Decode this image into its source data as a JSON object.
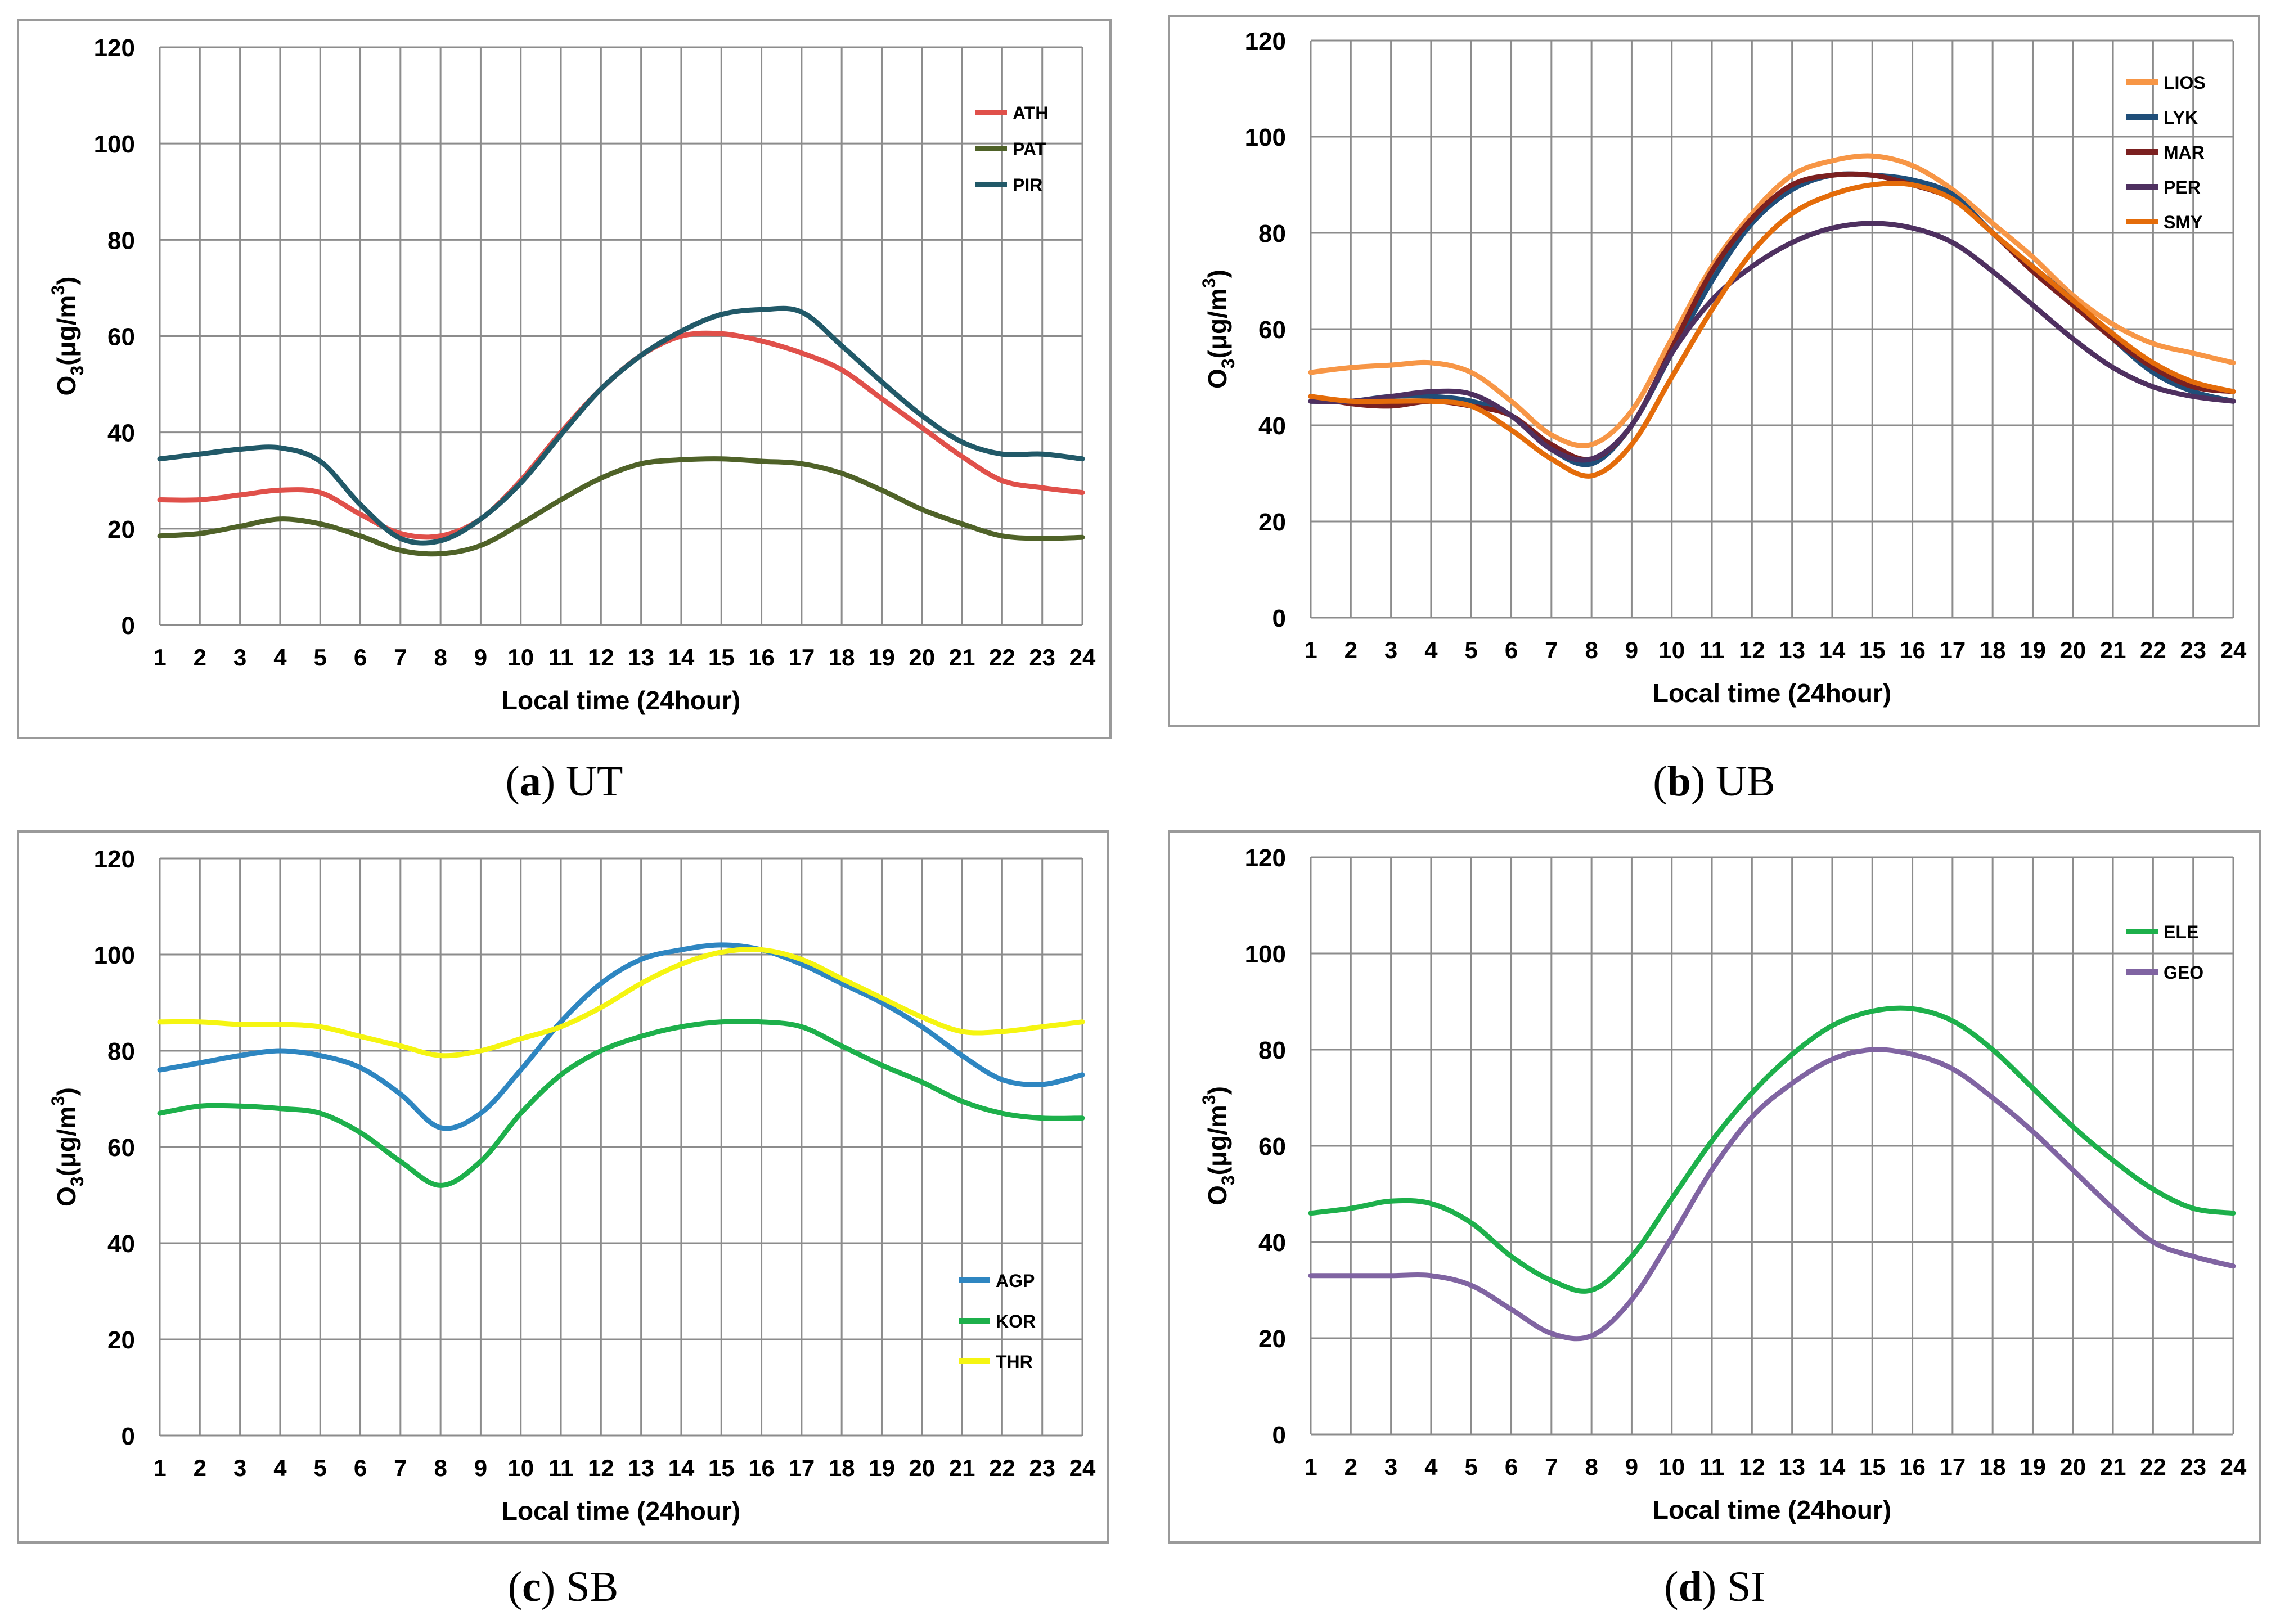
{
  "figure": {
    "panels": [
      {
        "id": "a",
        "caption_letter": "a",
        "caption_text": "UT"
      },
      {
        "id": "b",
        "caption_letter": "b",
        "caption_text": "UB"
      },
      {
        "id": "c",
        "caption_letter": "c",
        "caption_text": "SB"
      },
      {
        "id": "d",
        "caption_letter": "d",
        "caption_text": "SI"
      }
    ]
  },
  "chart_data": [
    {
      "type": "line",
      "title": "",
      "xlabel": "Local time (24hour)",
      "ylabel": "O3(μg/m3)",
      "ylim": [
        0,
        120
      ],
      "yticks": [
        0,
        20,
        40,
        60,
        80,
        100,
        120
      ],
      "x": [
        1,
        2,
        3,
        4,
        5,
        6,
        7,
        8,
        9,
        10,
        11,
        12,
        13,
        14,
        15,
        16,
        17,
        18,
        19,
        20,
        21,
        22,
        23,
        24
      ],
      "legend_position": "top-right",
      "series": [
        {
          "name": "ATH",
          "color": "#e0504a",
          "values": [
            26,
            26,
            27,
            28,
            27.5,
            23,
            19,
            18.5,
            22,
            30,
            40,
            49,
            56,
            60,
            60.5,
            59,
            56.5,
            53,
            47,
            41,
            35,
            30,
            28.5,
            27.5
          ]
        },
        {
          "name": "PAT",
          "color": "#4f6228",
          "values": [
            18.5,
            19,
            20.5,
            22,
            21,
            18.5,
            15.5,
            14.8,
            16.5,
            21,
            26,
            30.5,
            33.5,
            34.3,
            34.5,
            34,
            33.5,
            31.5,
            28,
            24,
            21,
            18.5,
            18,
            18.2
          ]
        },
        {
          "name": "PIR",
          "color": "#215968",
          "values": [
            34.5,
            35.5,
            36.5,
            36.8,
            34,
            25,
            18,
            17.5,
            22,
            29.5,
            39.5,
            49,
            56,
            61,
            64.5,
            65.5,
            65,
            58,
            50.5,
            43.5,
            38,
            35.5,
            35.5,
            34.5
          ]
        }
      ]
    },
    {
      "type": "line",
      "title": "",
      "xlabel": "Local time (24hour)",
      "ylabel": "O3(μg/m3)",
      "ylim": [
        0,
        120
      ],
      "yticks": [
        0,
        20,
        40,
        60,
        80,
        100,
        120
      ],
      "x": [
        1,
        2,
        3,
        4,
        5,
        6,
        7,
        8,
        9,
        10,
        11,
        12,
        13,
        14,
        15,
        16,
        17,
        18,
        19,
        20,
        21,
        22,
        23,
        24
      ],
      "legend_position": "top-right",
      "series": [
        {
          "name": "LIOS",
          "color": "#f79646",
          "values": [
            51,
            52,
            52.5,
            53,
            51,
            45,
            38,
            36,
            43,
            58,
            73,
            84,
            92,
            95,
            96,
            94,
            89,
            82,
            75,
            67,
            61,
            57,
            55,
            53
          ]
        },
        {
          "name": "LYK",
          "color": "#1f4e79",
          "values": [
            45,
            45,
            46,
            46,
            45,
            42,
            35,
            32,
            40,
            55,
            70,
            82,
            89,
            92,
            92,
            91,
            88,
            80,
            73,
            66,
            58,
            51,
            47,
            45
          ]
        },
        {
          "name": "MAR",
          "color": "#7b2020",
          "values": [
            46,
            44.5,
            44,
            45,
            44,
            42,
            36,
            33,
            40,
            56,
            72,
            83,
            90,
            92,
            92,
            90,
            87,
            80,
            72,
            65,
            58,
            52,
            48,
            47
          ]
        },
        {
          "name": "PER",
          "color": "#4e3060",
          "values": [
            45,
            45,
            46,
            47,
            46.5,
            42,
            35,
            33,
            40,
            55,
            66,
            73,
            78,
            81,
            82,
            81,
            78,
            72,
            65,
            58,
            52,
            48,
            46,
            45
          ]
        },
        {
          "name": "SMY",
          "color": "#e46c0a",
          "values": [
            46,
            45,
            45,
            45,
            44,
            39,
            33,
            29.5,
            36,
            50,
            64,
            76,
            84,
            88,
            90,
            90,
            87,
            80,
            73,
            66,
            59,
            53,
            49,
            47
          ]
        }
      ]
    },
    {
      "type": "line",
      "title": "",
      "xlabel": "Local time (24hour)",
      "ylabel": "O3(μg/m3)",
      "ylim": [
        0,
        120
      ],
      "yticks": [
        0,
        20,
        40,
        60,
        80,
        100,
        120
      ],
      "x": [
        1,
        2,
        3,
        4,
        5,
        6,
        7,
        8,
        9,
        10,
        11,
        12,
        13,
        14,
        15,
        16,
        17,
        18,
        19,
        20,
        21,
        22,
        23,
        24
      ],
      "legend_position": "bottom-right",
      "series": [
        {
          "name": "AGP",
          "color": "#2e86c1",
          "values": [
            76,
            77.5,
            79,
            80,
            79,
            76.5,
            71,
            64,
            67,
            76,
            86,
            94,
            99,
            101,
            102,
            101,
            98,
            94,
            90,
            85,
            79,
            74,
            73,
            75
          ]
        },
        {
          "name": "KOR",
          "color": "#1db04b",
          "values": [
            67,
            68.5,
            68.5,
            68,
            67,
            63,
            57,
            52,
            57,
            67,
            75,
            80,
            83,
            85,
            86,
            86,
            85,
            81,
            77,
            73.5,
            69.5,
            67,
            66,
            66
          ]
        },
        {
          "name": "THR",
          "color": "#f5f511",
          "values": [
            86,
            86,
            85.5,
            85.5,
            85,
            83,
            81,
            79,
            80,
            82.5,
            85,
            89,
            94,
            98,
            100.5,
            101,
            99,
            95,
            91,
            87,
            84,
            84,
            85,
            86
          ]
        }
      ]
    },
    {
      "type": "line",
      "title": "",
      "xlabel": "Local time (24hour)",
      "ylabel": "O3(μg/m3)",
      "ylim": [
        0,
        120
      ],
      "yticks": [
        0,
        20,
        40,
        60,
        80,
        100,
        120
      ],
      "x": [
        1,
        2,
        3,
        4,
        5,
        6,
        7,
        8,
        9,
        10,
        11,
        12,
        13,
        14,
        15,
        16,
        17,
        18,
        19,
        20,
        21,
        22,
        23,
        24
      ],
      "legend_position": "top-right",
      "series": [
        {
          "name": "ELE",
          "color": "#1db04b",
          "values": [
            46,
            47,
            48.5,
            48,
            44,
            37,
            32,
            30,
            37,
            49,
            61,
            71,
            79,
            85,
            88,
            88.5,
            86,
            80,
            72,
            64,
            57,
            51,
            47,
            46
          ]
        },
        {
          "name": "GEO",
          "color": "#8064a2",
          "values": [
            33,
            33,
            33,
            33,
            31,
            26,
            21,
            20.5,
            28,
            41,
            55,
            66,
            73,
            78,
            80,
            79,
            76,
            70,
            63,
            55,
            47,
            40,
            37,
            35
          ]
        }
      ]
    }
  ]
}
